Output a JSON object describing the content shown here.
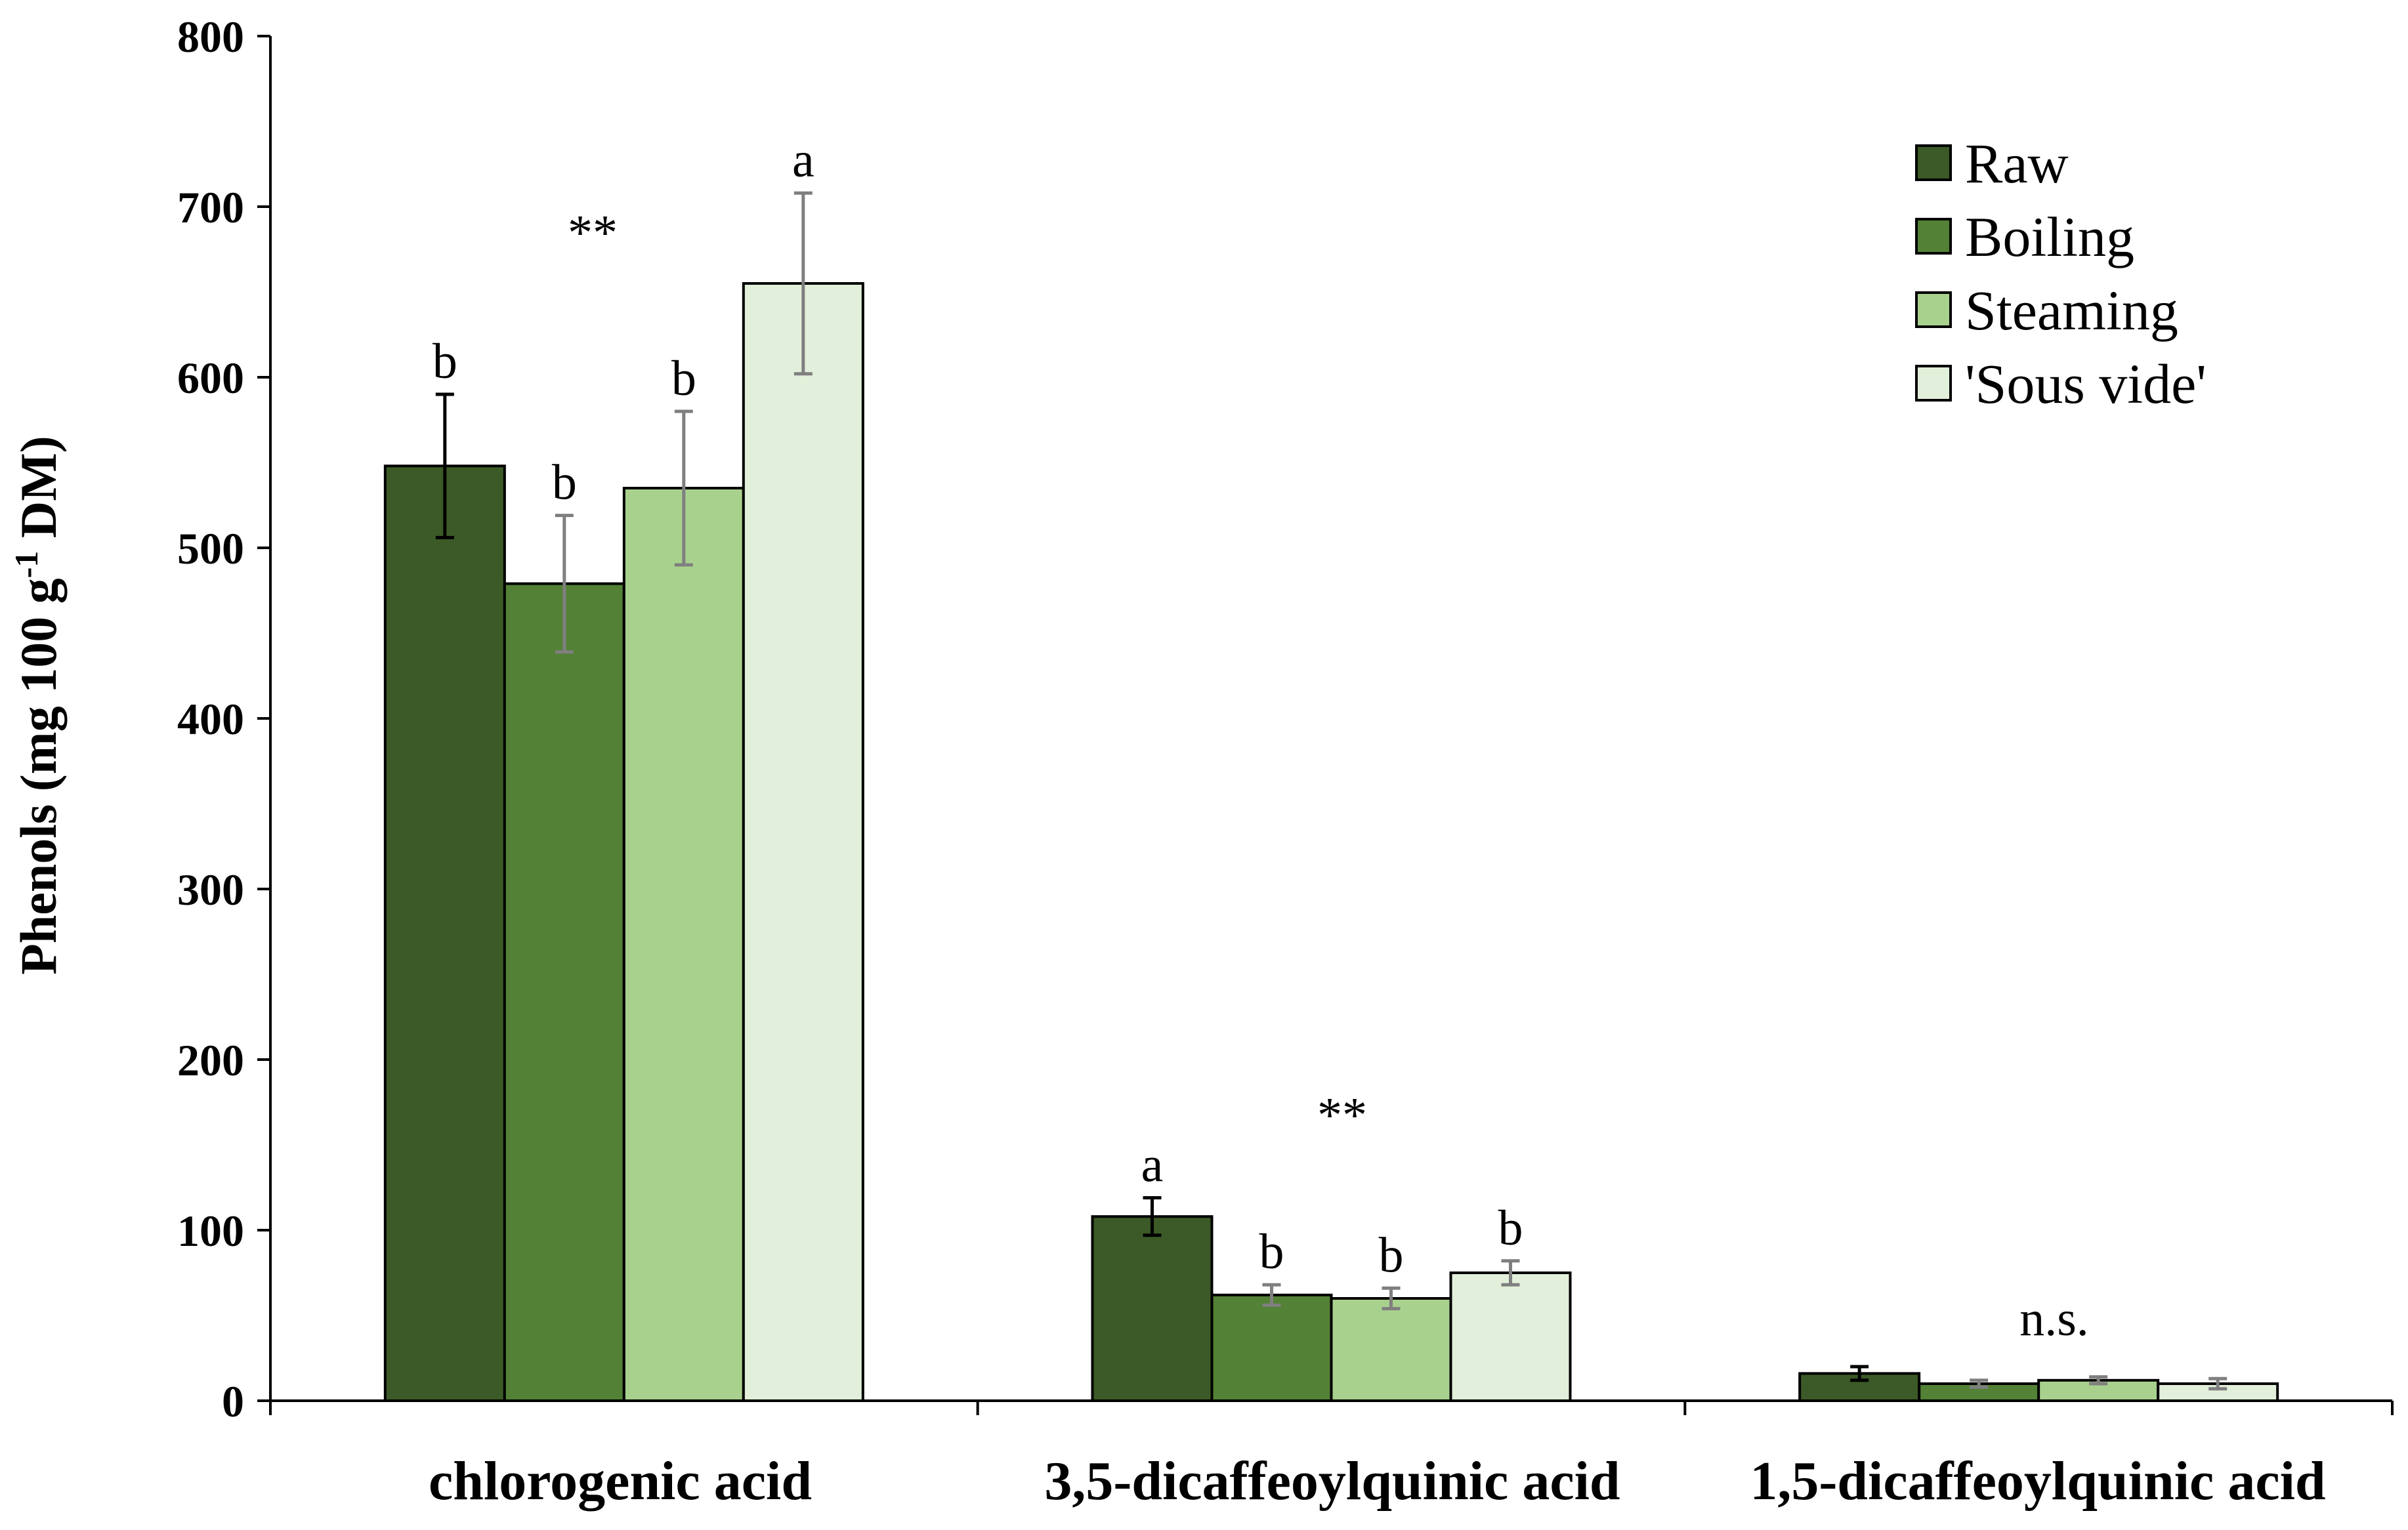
{
  "chart_data": {
    "type": "bar",
    "title": "",
    "xlabel": "",
    "ylabel": {
      "prefix": "Phenols (mg 100 g",
      "superscript": "-1",
      "suffix": " DM)"
    },
    "ylim": [
      0,
      800
    ],
    "yticks": [
      "0",
      "100",
      "200",
      "300",
      "400",
      "500",
      "600",
      "700",
      "800"
    ],
    "categories": [
      "chlorogenic acid",
      "3,5-dicaffeoylquinic acid",
      "1,5-dicaffeoylquinic acid"
    ],
    "series": [
      {
        "name": "Raw",
        "color": "#3b5a27",
        "errcolor": "#000000",
        "values": [
          548,
          108,
          16
        ],
        "errors": [
          42,
          11,
          4
        ],
        "letters": [
          "b",
          "a",
          ""
        ]
      },
      {
        "name": "Boiling",
        "color": "#538135",
        "errcolor": "#7f7f7f",
        "values": [
          479,
          62,
          10
        ],
        "errors": [
          40,
          6,
          2
        ],
        "letters": [
          "b",
          "b",
          ""
        ]
      },
      {
        "name": "Steaming",
        "color": "#a9d18e",
        "errcolor": "#7f7f7f",
        "values": [
          535,
          60,
          12
        ],
        "errors": [
          45,
          6,
          2
        ],
        "letters": [
          "b",
          "b",
          ""
        ]
      },
      {
        "name": " 'Sous vide'",
        "color": "#e2efda",
        "errcolor": "#7f7f7f",
        "values": [
          655,
          75,
          10
        ],
        "errors": [
          53,
          7,
          3
        ],
        "letters": [
          "a",
          "b",
          ""
        ]
      }
    ],
    "group_significance": [
      "**",
      "**",
      "n.s."
    ],
    "legend": "top-right",
    "grid": false
  }
}
